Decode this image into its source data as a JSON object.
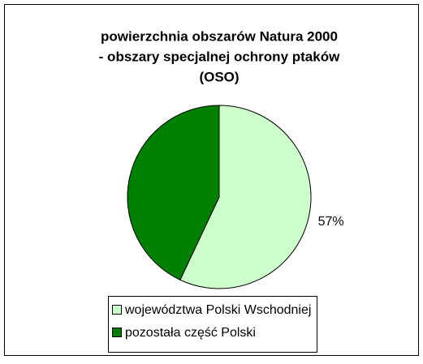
{
  "chart_data": {
    "type": "pie",
    "title": [
      "powierzchnia obszarów Natura 2000",
      "- obszary specjalnej ochrony ptaków",
      "(OSO)"
    ],
    "categories": [
      "województwa Polski Wschodniej",
      "pozostała część Polski"
    ],
    "values": [
      57,
      43
    ],
    "value_labels": [
      "57%",
      null
    ],
    "colors": [
      "#ccffcc",
      "#008000"
    ],
    "legend": "bottom"
  }
}
